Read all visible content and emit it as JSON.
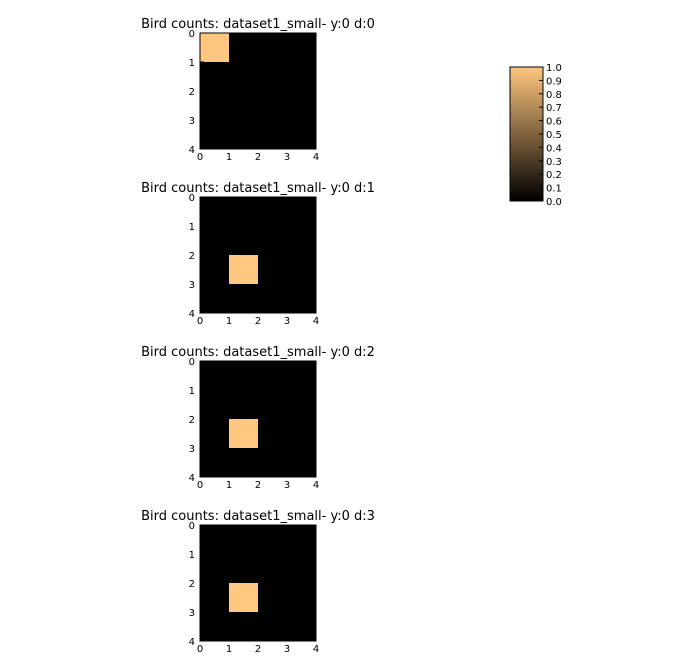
{
  "chart_data": [
    {
      "type": "heatmap",
      "title": "Bird counts: dataset1_small- y:0 d:0",
      "x_ticks": [
        "0",
        "1",
        "2",
        "3",
        "4"
      ],
      "y_ticks": [
        "0",
        "1",
        "2",
        "3",
        "4"
      ],
      "values": [
        [
          1,
          0,
          0,
          0
        ],
        [
          0,
          0,
          0,
          0
        ],
        [
          0,
          0,
          0,
          0
        ],
        [
          0,
          0,
          0,
          0
        ]
      ]
    },
    {
      "type": "heatmap",
      "title": "Bird counts: dataset1_small- y:0 d:1",
      "x_ticks": [
        "0",
        "1",
        "2",
        "3",
        "4"
      ],
      "y_ticks": [
        "0",
        "1",
        "2",
        "3",
        "4"
      ],
      "values": [
        [
          0,
          0,
          0,
          0
        ],
        [
          0,
          0,
          0,
          0
        ],
        [
          0,
          1,
          0,
          0
        ],
        [
          0,
          0,
          0,
          0
        ]
      ]
    },
    {
      "type": "heatmap",
      "title": "Bird counts: dataset1_small- y:0 d:2",
      "x_ticks": [
        "0",
        "1",
        "2",
        "3",
        "4"
      ],
      "y_ticks": [
        "0",
        "1",
        "2",
        "3",
        "4"
      ],
      "values": [
        [
          0,
          0,
          0,
          0
        ],
        [
          0,
          0,
          0,
          0
        ],
        [
          0,
          1,
          0,
          0
        ],
        [
          0,
          0,
          0,
          0
        ]
      ]
    },
    {
      "type": "heatmap",
      "title": "Bird counts: dataset1_small- y:0 d:3",
      "x_ticks": [
        "0",
        "1",
        "2",
        "3",
        "4"
      ],
      "y_ticks": [
        "0",
        "1",
        "2",
        "3",
        "4"
      ],
      "values": [
        [
          0,
          0,
          0,
          0
        ],
        [
          0,
          0,
          0,
          0
        ],
        [
          0,
          1,
          0,
          0
        ],
        [
          0,
          0,
          0,
          0
        ]
      ]
    }
  ],
  "colorbar": {
    "ticks": [
      "0.0",
      "0.1",
      "0.2",
      "0.3",
      "0.4",
      "0.5",
      "0.6",
      "0.7",
      "0.8",
      "0.9",
      "1.0"
    ],
    "range": [
      0,
      1
    ],
    "colormap": "copper",
    "color_low": "#000000",
    "color_high": "#ffc77f"
  }
}
